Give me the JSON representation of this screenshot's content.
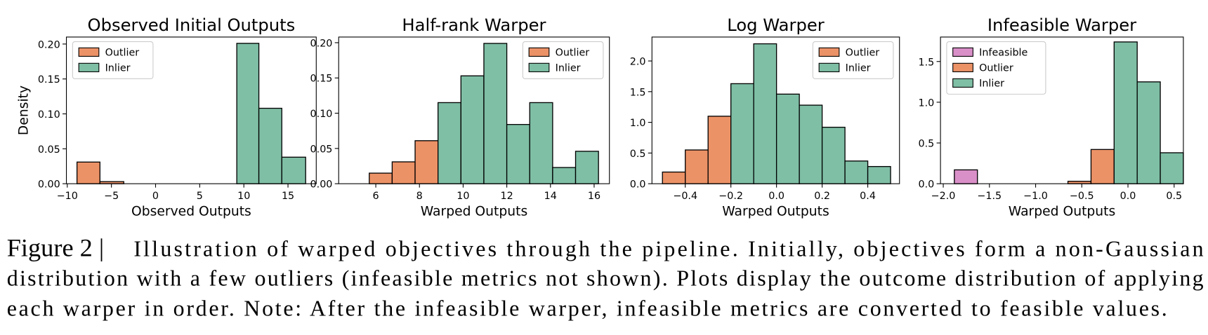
{
  "chart_data": [
    {
      "type": "histogram",
      "title": "Observed Initial Outputs",
      "xlabel": "Observed Outputs",
      "ylabel": "Density",
      "xlim": [
        -10.1,
        18.2
      ],
      "ylim": [
        0,
        0.21
      ],
      "xticks": [
        {
          "value": -10,
          "label": "−10"
        },
        {
          "value": -5,
          "label": "−5"
        },
        0,
        5,
        10,
        15
      ],
      "yticks": [
        {
          "value": 0,
          "label": "0.00"
        },
        {
          "value": 0.05,
          "label": "0.05"
        },
        {
          "value": 0.1,
          "label": "0.10"
        },
        {
          "value": 0.15,
          "label": "0.15"
        },
        {
          "value": 0.2,
          "label": "0.20"
        }
      ],
      "legend": "upper left",
      "series": [
        {
          "name": "Outlier",
          "color": "#ec9267",
          "bins": [
            -8.9,
            -6.3,
            -3.6,
            -1.0,
            1.7,
            4.3,
            6.9,
            9.2
          ],
          "values": [
            0.031,
            0.003,
            0,
            0,
            0,
            0,
            0
          ]
        },
        {
          "name": "Inlier",
          "color": "#7fbfa6",
          "bins": [
            9.2,
            11.7,
            14.3,
            17.0
          ],
          "values": [
            0.201,
            0.108,
            0.038
          ]
        }
      ]
    },
    {
      "type": "histogram",
      "title": "Half-rank Warper",
      "xlabel": "Warped Outputs",
      "xlim": [
        4.3,
        16.7
      ],
      "ylim": [
        0,
        0.208
      ],
      "xticks": [
        6,
        8,
        10,
        12,
        14,
        16
      ],
      "yticks": [
        {
          "value": 0,
          "label": "0.00"
        },
        {
          "value": 0.05,
          "label": "0.05"
        },
        {
          "value": 0.1,
          "label": "0.10"
        },
        {
          "value": 0.15,
          "label": "0.15"
        },
        {
          "value": 0.2,
          "label": "0.20"
        }
      ],
      "legend": "upper right",
      "series": [
        {
          "name": "Outlier",
          "color": "#ec9267",
          "bins": [
            5.7,
            6.75,
            7.8,
            8.85
          ],
          "values": [
            0.015,
            0.031,
            0.061
          ]
        },
        {
          "name": "Inlier",
          "color": "#7fbfa6",
          "bins": [
            8.85,
            9.9,
            10.95,
            12.0,
            13.05,
            14.1,
            15.15,
            16.2
          ],
          "values": [
            0.115,
            0.153,
            0.199,
            0.084,
            0.115,
            0.023,
            0.046
          ]
        }
      ]
    },
    {
      "type": "histogram",
      "title": "Log Warper",
      "xlabel": "Warped Outputs",
      "xlim": [
        -0.546,
        0.539
      ],
      "ylim": [
        0,
        2.39
      ],
      "xticks": [
        {
          "value": -0.4,
          "label": "−0.4"
        },
        {
          "value": -0.2,
          "label": "−0.2"
        },
        {
          "value": 0,
          "label": "0.0"
        },
        0.2,
        0.4
      ],
      "yticks": [
        {
          "value": 0,
          "label": "0.0"
        },
        0.5,
        {
          "value": 1,
          "label": "1.0"
        },
        1.5,
        {
          "value": 2,
          "label": "2.0"
        }
      ],
      "legend": "upper right",
      "series": [
        {
          "name": "Outlier",
          "color": "#ec9267",
          "bins": [
            -0.5,
            -0.4,
            -0.3,
            -0.2
          ],
          "values": [
            0.19,
            0.55,
            1.1
          ]
        },
        {
          "name": "Inlier",
          "color": "#7fbfa6",
          "bins": [
            -0.2,
            -0.1,
            0,
            0.1,
            0.2,
            0.3,
            0.4,
            0.5
          ],
          "values": [
            1.63,
            2.28,
            1.46,
            1.28,
            0.92,
            0.37,
            0.28
          ]
        }
      ]
    },
    {
      "type": "histogram",
      "title": "Infeasible Warper",
      "xlabel": "Warped Outputs",
      "xlim": [
        -2.03,
        0.6
      ],
      "ylim": [
        0,
        1.8
      ],
      "xticks": [
        {
          "value": -2,
          "label": "−2.0"
        },
        {
          "value": -1.5,
          "label": "−1.5"
        },
        {
          "value": -1,
          "label": "−1.0"
        },
        {
          "value": -0.5,
          "label": "−0.5"
        },
        {
          "value": 0,
          "label": "0.0"
        },
        0.5
      ],
      "yticks": [
        {
          "value": 0,
          "label": "0.0"
        },
        0.5,
        {
          "value": 1,
          "label": "1.0"
        },
        1.5
      ],
      "legend": "upper left",
      "series": [
        {
          "name": "Infeasible",
          "color": "#d98fc8",
          "bins": [
            -1.88,
            -1.63,
            -1.38,
            -1.13,
            -0.88,
            -0.65
          ],
          "values": [
            0.17,
            0,
            0,
            0,
            0
          ]
        },
        {
          "name": "Outlier",
          "color": "#ec9267",
          "bins": [
            -0.65,
            -0.4,
            -0.15
          ],
          "values": [
            0.03,
            0.42
          ]
        },
        {
          "name": "Inlier",
          "color": "#7fbfa6",
          "bins": [
            -0.15,
            0.1,
            0.35,
            0.6
          ],
          "values": [
            1.74,
            1.25,
            0.38
          ]
        }
      ]
    }
  ],
  "caption": {
    "label": "Figure 2 |",
    "lines": [
      "Illustration of warped objectives through the pipeline. Initially, objectives form a non-Gaussian",
      "distribution with a few outliers (infeasible metrics not shown). Plots display the outcome distribution of applying",
      "each warper in order. Note: After the infeasible warper, infeasible metrics are converted to feasible values."
    ]
  }
}
